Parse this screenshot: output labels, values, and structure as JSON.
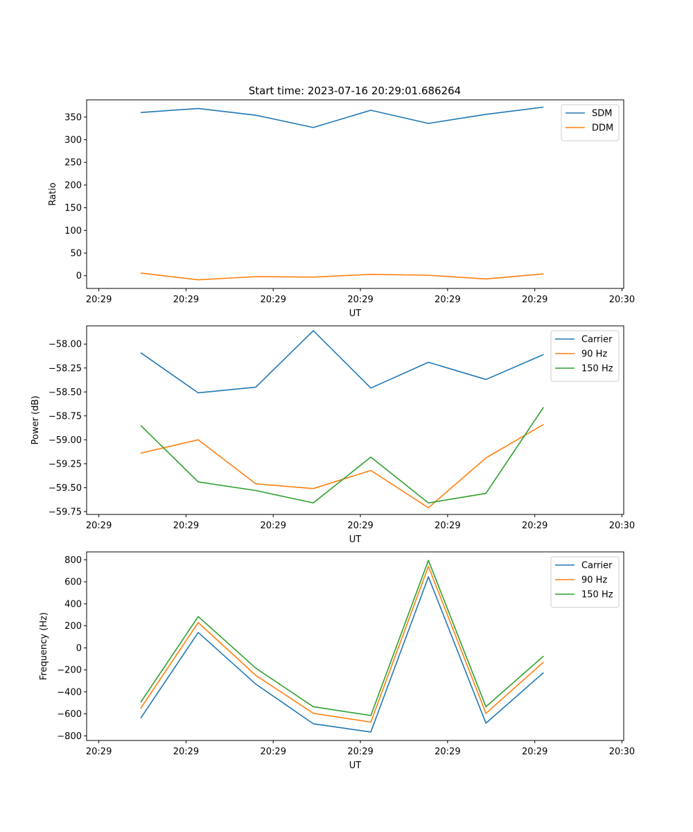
{
  "figure_title": "Start time: 2023-07-16 20:29:01.686264",
  "colors": {
    "blue": "#1f77b4",
    "orange": "#ff7f0e",
    "green": "#2ca02c"
  },
  "chart_data": [
    {
      "type": "line",
      "xlabel": "UT",
      "ylabel": "Ratio",
      "x_ticks": [
        "20:29",
        "20:29",
        "20:29",
        "20:29",
        "20:29",
        "20:29",
        "20:30"
      ],
      "x_range": [
        -0.14,
        6.02
      ],
      "x": [
        0.48,
        1.14,
        1.8,
        2.46,
        3.12,
        3.78,
        4.44,
        5.1
      ],
      "ylim": [
        -28,
        388
      ],
      "y_ticks": [
        0,
        50,
        100,
        150,
        200,
        250,
        300,
        350
      ],
      "legend_position": "top-right",
      "series": [
        {
          "name": "SDM",
          "color": "#1f77b4",
          "values": [
            360,
            369,
            354,
            327,
            365,
            336,
            356,
            372
          ]
        },
        {
          "name": "DDM",
          "color": "#ff7f0e",
          "values": [
            6,
            -9,
            -2,
            -3,
            3,
            1,
            -7,
            4
          ]
        }
      ]
    },
    {
      "type": "line",
      "xlabel": "UT",
      "ylabel": "Power (dB)",
      "x_ticks": [
        "20:29",
        "20:29",
        "20:29",
        "20:29",
        "20:29",
        "20:29",
        "20:30"
      ],
      "x_range": [
        -0.14,
        6.02
      ],
      "x": [
        0.48,
        1.14,
        1.8,
        2.46,
        3.12,
        3.78,
        4.44,
        5.1
      ],
      "ylim": [
        -59.78,
        -57.81
      ],
      "y_ticks": [
        -58.0,
        -58.25,
        -58.5,
        -58.75,
        -59.0,
        -59.25,
        -59.5,
        -59.75
      ],
      "legend_position": "top-right",
      "series": [
        {
          "name": "Carrier",
          "color": "#1f77b4",
          "values": [
            -58.09,
            -58.51,
            -58.45,
            -57.86,
            -58.46,
            -58.19,
            -58.37,
            -58.11
          ]
        },
        {
          "name": "90 Hz",
          "color": "#ff7f0e",
          "values": [
            -59.14,
            -59.0,
            -59.46,
            -59.51,
            -59.32,
            -59.71,
            -59.19,
            -58.84
          ]
        },
        {
          "name": "150 Hz",
          "color": "#2ca02c",
          "values": [
            -58.85,
            -59.44,
            -59.53,
            -59.66,
            -59.18,
            -59.66,
            -59.56,
            -58.66
          ]
        }
      ]
    },
    {
      "type": "line",
      "xlabel": "UT",
      "ylabel": "Frequency (Hz)",
      "x_ticks": [
        "20:29",
        "20:29",
        "20:29",
        "20:29",
        "20:29",
        "20:29",
        "20:30"
      ],
      "x_range": [
        -0.14,
        6.02
      ],
      "x": [
        0.48,
        1.14,
        1.8,
        2.46,
        3.12,
        3.78,
        4.44,
        5.1
      ],
      "ylim": [
        -842,
        872
      ],
      "y_ticks": [
        -800,
        -600,
        -400,
        -200,
        0,
        200,
        400,
        600,
        800
      ],
      "legend_position": "top-right",
      "series": [
        {
          "name": "Carrier",
          "color": "#1f77b4",
          "values": [
            -640,
            140,
            -330,
            -690,
            -765,
            645,
            -685,
            -225
          ]
        },
        {
          "name": "90 Hz",
          "color": "#ff7f0e",
          "values": [
            -550,
            230,
            -250,
            -595,
            -675,
            740,
            -595,
            -130
          ]
        },
        {
          "name": "150 Hz",
          "color": "#2ca02c",
          "values": [
            -495,
            285,
            -185,
            -535,
            -615,
            795,
            -535,
            -75
          ]
        }
      ]
    }
  ]
}
